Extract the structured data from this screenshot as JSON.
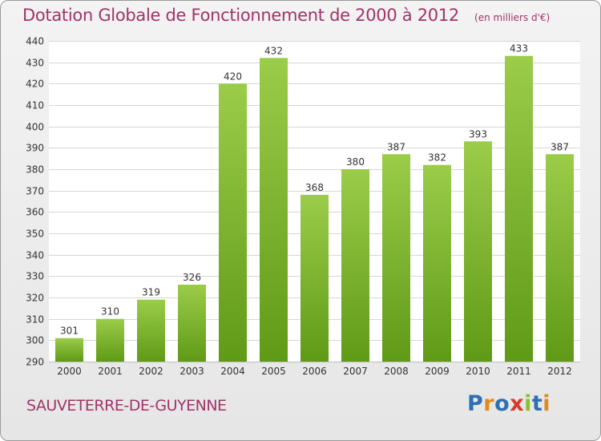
{
  "header": {
    "title": "Dotation Globale de Fonctionnement de 2000 à 2012",
    "subtitle": "(en milliers d'€)"
  },
  "footer": {
    "place": "SAUVETERRE-DE-GUYENNE",
    "logo": "Proxiti"
  },
  "colors": {
    "bar_top": "#9bcc4a",
    "bar_bottom": "#5f9a16",
    "title": "#a03468"
  },
  "chart_data": {
    "type": "bar",
    "title": "Dotation Globale de Fonctionnement de 2000 à 2012",
    "subtitle": "(en milliers d'€)",
    "xlabel": "",
    "ylabel": "",
    "categories": [
      "2000",
      "2001",
      "2002",
      "2003",
      "2004",
      "2005",
      "2006",
      "2007",
      "2008",
      "2009",
      "2010",
      "2011",
      "2012"
    ],
    "values": [
      301,
      310,
      319,
      326,
      420,
      432,
      368,
      380,
      387,
      382,
      393,
      433,
      387
    ],
    "ylim": [
      290,
      440
    ],
    "yticks": [
      290,
      300,
      310,
      320,
      330,
      340,
      350,
      360,
      370,
      380,
      390,
      400,
      410,
      420,
      430,
      440
    ],
    "grid": true,
    "data_labels": true
  }
}
